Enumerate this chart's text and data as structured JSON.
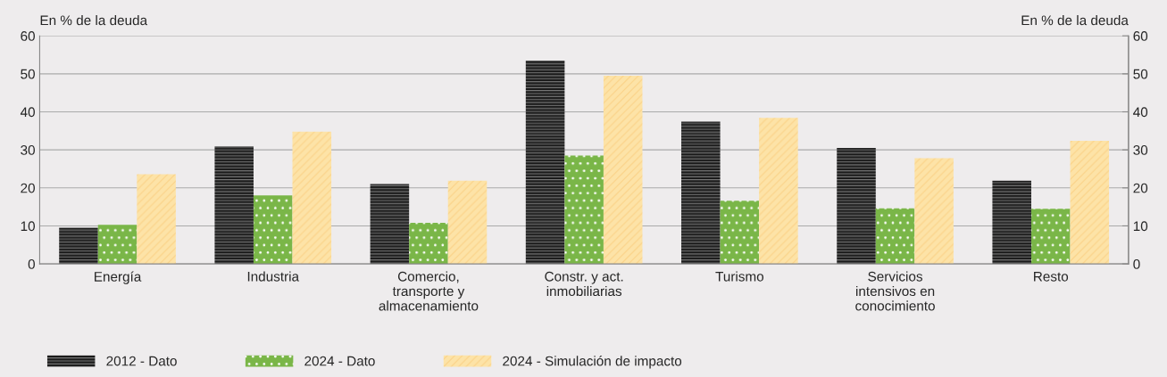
{
  "chart_data": {
    "type": "bar",
    "ylabel": "En % de la deuda",
    "y2label": "En % de la deuda",
    "categories": [
      "Energía",
      "Industria",
      "Comercio,\ntransporte y\nalmacenamiento",
      "Constr. y act.\ninmobiliarias",
      "Turismo",
      "Servicios\nintensivos en\nconocimiento",
      "Resto"
    ],
    "series": [
      {
        "name": "2012 - Dato",
        "color": "#1a1a1a",
        "values": [
          9.5,
          30.9,
          21.0,
          53.5,
          37.4,
          30.5,
          21.9
        ]
      },
      {
        "name": "2024 - Dato",
        "color": "#7ab648",
        "values": [
          10.3,
          18.0,
          10.8,
          28.5,
          16.6,
          14.6,
          14.5
        ]
      },
      {
        "name": "2024 - Simulación de impacto",
        "color": "#fde3a7",
        "values": [
          23.6,
          34.8,
          21.9,
          49.5,
          38.4,
          27.8,
          32.4
        ]
      }
    ],
    "ylim": [
      0,
      60
    ],
    "yticks": [
      0,
      10,
      20,
      30,
      40,
      50,
      60
    ],
    "y2lim": [
      0,
      60
    ],
    "y2ticks": [
      0,
      10,
      20,
      30,
      40,
      50,
      60
    ],
    "grid": "y",
    "legend": "bottom"
  }
}
